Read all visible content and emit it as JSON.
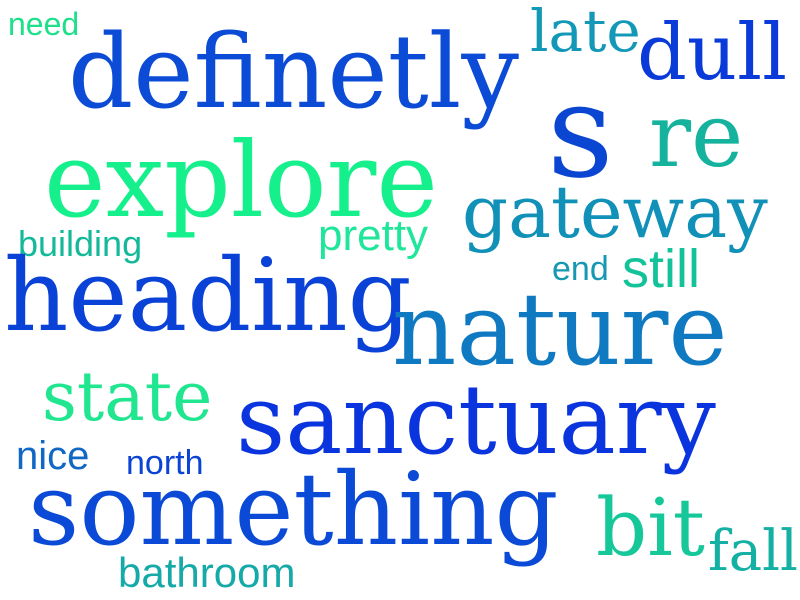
{
  "words": [
    {
      "key": "need",
      "text": "need",
      "color": "#1ee08a"
    },
    {
      "key": "definetly",
      "text": "definetly",
      "color": "#0b4bd6"
    },
    {
      "key": "late",
      "text": "late",
      "color": "#1498b8"
    },
    {
      "key": "dull",
      "text": "dull",
      "color": "#0a3ad8"
    },
    {
      "key": "s",
      "text": "s",
      "color": "#0a46d1"
    },
    {
      "key": "re",
      "text": "re",
      "color": "#15b39d"
    },
    {
      "key": "explore",
      "text": "explore",
      "color": "#16f08c"
    },
    {
      "key": "gateway",
      "text": "gateway",
      "color": "#1190b8"
    },
    {
      "key": "building",
      "text": "building",
      "color": "#14b99a"
    },
    {
      "key": "pretty",
      "text": "pretty",
      "color": "#1fe69a"
    },
    {
      "key": "end",
      "text": "end",
      "color": "#1697b2"
    },
    {
      "key": "still",
      "text": "still",
      "color": "#14c29a"
    },
    {
      "key": "heading",
      "text": "heading",
      "color": "#0a42d8"
    },
    {
      "key": "nature",
      "text": "nature",
      "color": "#0f7ac2"
    },
    {
      "key": "state",
      "text": "state",
      "color": "#20e68f"
    },
    {
      "key": "sanctuary",
      "text": "sanctuary",
      "color": "#0a34dd"
    },
    {
      "key": "nice",
      "text": "nice",
      "color": "#1168c4"
    },
    {
      "key": "north",
      "text": "north",
      "color": "#0b43d5"
    },
    {
      "key": "something",
      "text": "something",
      "color": "#0b4ad6"
    },
    {
      "key": "bit",
      "text": "bit",
      "color": "#16c79a"
    },
    {
      "key": "fall",
      "text": "fall",
      "color": "#14b0a3"
    },
    {
      "key": "bathroom",
      "text": "bathroom",
      "color": "#15a9a8"
    }
  ]
}
